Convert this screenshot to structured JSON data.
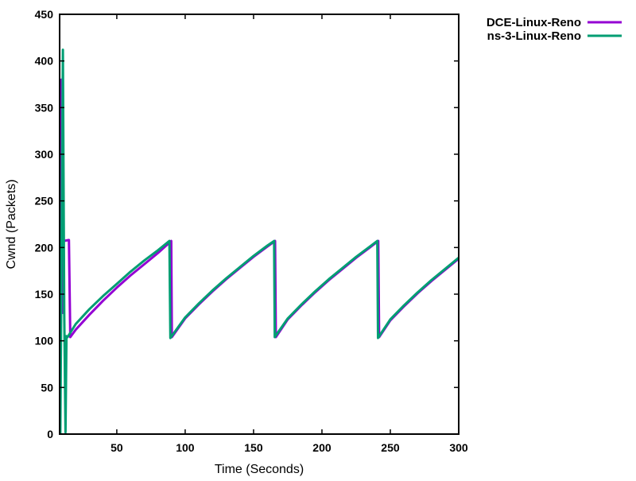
{
  "chart_data": {
    "type": "line",
    "title": "",
    "xlabel": "Time (Seconds)",
    "ylabel": "Cwnd (Packets)",
    "xlim": [
      8.2,
      300
    ],
    "ylim": [
      0,
      450
    ],
    "xticks": [
      50,
      100,
      150,
      200,
      250,
      300
    ],
    "yticks": [
      0,
      50,
      100,
      150,
      200,
      250,
      300,
      350,
      400,
      450
    ],
    "grid": false,
    "legend_position": "top-right-outside",
    "series": [
      {
        "name": "DCE-Linux-Reno",
        "color": "#9400d3",
        "points": [
          [
            8.5,
            10
          ],
          [
            9.6,
            380
          ],
          [
            10.4,
            130
          ],
          [
            11,
            207
          ],
          [
            15,
            208
          ],
          [
            16,
            104
          ],
          [
            20,
            112
          ],
          [
            30,
            128
          ],
          [
            40,
            143
          ],
          [
            50,
            157
          ],
          [
            60,
            170
          ],
          [
            70,
            182
          ],
          [
            80,
            194
          ],
          [
            89.8,
            207
          ],
          [
            90.3,
            104
          ],
          [
            100,
            124
          ],
          [
            110,
            139
          ],
          [
            120,
            153
          ],
          [
            130,
            166
          ],
          [
            140,
            178
          ],
          [
            150,
            190
          ],
          [
            160,
            201
          ],
          [
            165.7,
            207
          ],
          [
            166.3,
            104
          ],
          [
            175,
            123
          ],
          [
            185,
            138
          ],
          [
            195,
            152
          ],
          [
            205,
            165
          ],
          [
            215,
            177
          ],
          [
            225,
            189
          ],
          [
            235,
            200
          ],
          [
            241.2,
            207
          ],
          [
            241.8,
            104
          ],
          [
            250,
            122
          ],
          [
            260,
            137
          ],
          [
            270,
            151
          ],
          [
            280,
            164
          ],
          [
            290,
            176
          ],
          [
            300,
            188
          ]
        ]
      },
      {
        "name": "ns-3-Linux-Reno",
        "color": "#009e73",
        "points": [
          [
            8.7,
            0
          ],
          [
            10.6,
            412
          ],
          [
            11.6,
            130
          ],
          [
            12.5,
            2
          ],
          [
            13.2,
            105
          ],
          [
            14,
            104
          ],
          [
            20,
            118
          ],
          [
            30,
            134
          ],
          [
            40,
            148
          ],
          [
            50,
            161
          ],
          [
            60,
            174
          ],
          [
            70,
            186
          ],
          [
            80,
            197
          ],
          [
            88.5,
            207
          ],
          [
            89.2,
            103
          ],
          [
            100,
            125
          ],
          [
            110,
            140
          ],
          [
            120,
            154
          ],
          [
            130,
            167
          ],
          [
            140,
            179
          ],
          [
            150,
            191
          ],
          [
            160,
            202
          ],
          [
            165,
            207
          ],
          [
            165.5,
            104
          ],
          [
            175,
            124
          ],
          [
            185,
            139
          ],
          [
            195,
            153
          ],
          [
            205,
            166
          ],
          [
            215,
            178
          ],
          [
            225,
            190
          ],
          [
            235,
            201
          ],
          [
            240.5,
            207
          ],
          [
            241,
            103
          ],
          [
            250,
            123
          ],
          [
            260,
            138
          ],
          [
            270,
            152
          ],
          [
            280,
            165
          ],
          [
            290,
            177
          ],
          [
            300,
            189
          ]
        ]
      }
    ]
  }
}
